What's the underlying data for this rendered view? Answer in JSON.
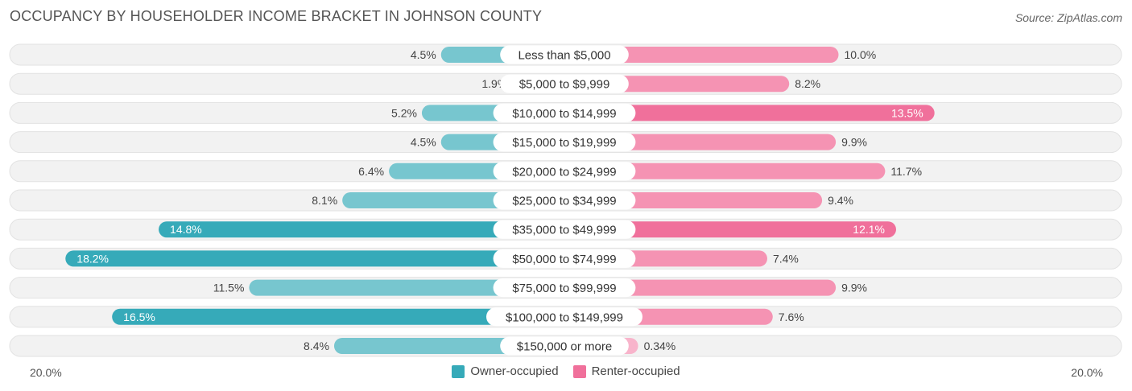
{
  "header": {
    "title": "OCCUPANCY BY HOUSEHOLDER INCOME BRACKET IN JOHNSON COUNTY",
    "source": "Source: ZipAtlas.com"
  },
  "axis": {
    "left_label": "20.0%",
    "right_label": "20.0%"
  },
  "legend": {
    "owner_label": "Owner-occupied",
    "renter_label": "Renter-occupied"
  },
  "colors": {
    "owner": "#77c6cf",
    "owner_strong": "#36aab9",
    "renter": "#f593b3",
    "renter_strong": "#f0709b",
    "renter_light": "#f8b4cb",
    "track": "#efefef"
  },
  "chart_data": {
    "type": "bar",
    "orientation": "horizontal-diverging",
    "title": "OCCUPANCY BY HOUSEHOLDER INCOME BRACKET IN JOHNSON COUNTY",
    "xlim": [
      -20,
      20
    ],
    "categories": [
      "Less than $5,000",
      "$5,000 to $9,999",
      "$10,000 to $14,999",
      "$15,000 to $19,999",
      "$20,000 to $24,999",
      "$25,000 to $34,999",
      "$35,000 to $49,999",
      "$50,000 to $74,999",
      "$75,000 to $99,999",
      "$100,000 to $149,999",
      "$150,000 or more"
    ],
    "series": [
      {
        "name": "Owner-occupied",
        "values": [
          4.5,
          1.9,
          5.2,
          4.5,
          6.4,
          8.1,
          14.8,
          18.2,
          11.5,
          16.5,
          8.4
        ],
        "labels": [
          "4.5%",
          "1.9%",
          "5.2%",
          "4.5%",
          "6.4%",
          "8.1%",
          "14.8%",
          "18.2%",
          "11.5%",
          "16.5%",
          "8.4%"
        ]
      },
      {
        "name": "Renter-occupied",
        "values": [
          10.0,
          8.2,
          13.5,
          9.9,
          11.7,
          9.4,
          12.1,
          7.4,
          9.9,
          7.6,
          0.34
        ],
        "labels": [
          "10.0%",
          "8.2%",
          "13.5%",
          "9.9%",
          "11.7%",
          "9.4%",
          "12.1%",
          "7.4%",
          "9.9%",
          "7.6%",
          "0.34%"
        ]
      }
    ]
  }
}
